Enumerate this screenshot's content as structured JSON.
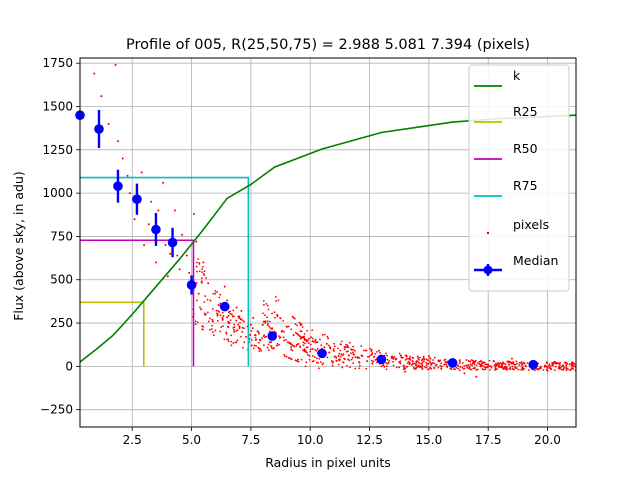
{
  "chart_data": {
    "type": "scatter",
    "title": "Profile of 005, R(25,50,75) = 2.988 5.081 7.394 (pixels)",
    "xlabel": "Radius in pixel units",
    "ylabel": "Flux (above sky, in adu)",
    "xlim": [
      0.3,
      21.2
    ],
    "ylim": [
      -350,
      1780
    ],
    "xticks": [
      2.5,
      5.0,
      7.5,
      10.0,
      12.5,
      15.0,
      17.5,
      20.0
    ],
    "xtick_labels": [
      "2.5",
      "5.0",
      "7.5",
      "10.0",
      "12.5",
      "15.0",
      "17.5",
      "20.0"
    ],
    "yticks": [
      -250,
      0,
      250,
      500,
      750,
      1000,
      1250,
      1500,
      1750
    ],
    "ytick_labels": [
      "−250",
      "0",
      "250",
      "500",
      "750",
      "1000",
      "1250",
      "1500",
      "1750"
    ],
    "grid": true,
    "legend_position": "top-right",
    "legend": [
      {
        "label": "k",
        "kind": "line",
        "color": "#008000"
      },
      {
        "label": "R25",
        "kind": "line",
        "color": "#bfbf00"
      },
      {
        "label": "R50",
        "kind": "line",
        "color": "#bf00bf"
      },
      {
        "label": "R75",
        "kind": "line",
        "color": "#00bfbf"
      },
      {
        "label": "pixels",
        "kind": "dot",
        "color": "#ff0000"
      },
      {
        "label": "Median",
        "kind": "errorbar",
        "color": "#0000ff"
      }
    ],
    "k_curve": {
      "x": [
        0.3,
        1.0,
        1.7,
        2.5,
        3.5,
        4.5,
        5.5,
        6.5,
        7.5,
        8.5,
        10.5,
        13.0,
        16.0,
        18.0,
        21.2
      ],
      "y": [
        25,
        100,
        180,
        300,
        460,
        620,
        790,
        970,
        1050,
        1150,
        1255,
        1350,
        1410,
        1430,
        1450
      ]
    },
    "radius_markers": [
      {
        "name": "R25",
        "radius": 2.988,
        "flux": 370
      },
      {
        "name": "R50",
        "radius": 5.081,
        "flux": 728
      },
      {
        "name": "R75",
        "radius": 7.394,
        "flux": 1090
      }
    ],
    "median": {
      "x": [
        0.3,
        1.1,
        1.9,
        2.7,
        3.5,
        4.2,
        5.0,
        6.4,
        8.4,
        10.5,
        13.0,
        16.0,
        19.4
      ],
      "y": [
        1450,
        1370,
        1040,
        965,
        790,
        715,
        470,
        345,
        175,
        75,
        40,
        20,
        10
      ],
      "err": [
        0,
        110,
        95,
        90,
        95,
        85,
        55,
        25,
        20,
        10,
        8,
        8,
        8
      ]
    },
    "pixels": {
      "color": "#ff0000",
      "x": [
        0.9,
        1.2,
        1.5,
        1.8,
        1.9,
        2.1,
        2.3,
        2.4,
        2.6,
        2.7,
        2.9,
        3.0,
        3.2,
        3.3,
        3.4,
        3.5,
        3.6,
        3.8,
        3.9,
        4.0,
        4.1,
        4.3,
        4.4,
        4.5,
        4.6,
        4.8,
        4.9,
        5.0,
        5.1,
        5.2,
        5.3,
        5.4,
        5.5,
        5.6,
        5.7,
        5.8,
        5.9,
        6.0,
        6.1,
        6.2,
        6.3,
        6.4,
        6.5,
        6.6,
        6.7,
        6.8,
        6.9,
        7.0,
        7.1,
        7.2,
        7.3,
        7.4,
        7.5,
        7.6,
        7.7,
        7.8,
        7.9,
        8.0,
        8.2,
        8.3,
        8.4,
        8.5,
        8.6,
        8.8,
        8.9,
        9.0,
        9.2,
        9.3,
        9.5,
        9.6,
        9.8,
        9.9,
        10.1,
        10.3,
        10.4,
        10.6,
        10.8,
        11.0,
        11.2,
        11.4,
        11.6,
        11.8,
        12.0,
        12.2,
        12.4,
        12.6,
        12.8,
        13.0,
        13.3,
        13.6,
        13.9,
        14.2,
        14.5,
        14.8,
        15.1,
        15.4,
        15.7,
        16.0,
        16.3,
        16.6,
        16.9,
        17.2,
        17.5,
        17.8,
        18.1,
        18.4,
        18.7,
        19.0,
        19.3,
        19.6,
        19.9,
        20.2,
        20.5,
        20.8,
        21.1,
        14.0,
        15.0,
        16.5,
        18.5,
        20.0,
        12.9,
        11.5,
        10.7,
        9.7,
        17.0
      ],
      "y": [
        1690,
        1560,
        1400,
        1740,
        1300,
        1200,
        1100,
        1000,
        850,
        900,
        1120,
        700,
        820,
        950,
        780,
        600,
        900,
        1060,
        700,
        520,
        650,
        900,
        640,
        560,
        760,
        640,
        540,
        430,
        880,
        720,
        420,
        330,
        600,
        300,
        480,
        380,
        260,
        420,
        300,
        350,
        280,
        460,
        380,
        250,
        300,
        200,
        340,
        280,
        320,
        260,
        170,
        320,
        240,
        280,
        180,
        200,
        150,
        240,
        260,
        140,
        220,
        180,
        120,
        200,
        150,
        230,
        110,
        180,
        130,
        160,
        90,
        150,
        100,
        140,
        60,
        110,
        80,
        90,
        60,
        70,
        40,
        80,
        50,
        60,
        30,
        70,
        40,
        50,
        20,
        40,
        50,
        20,
        30,
        40,
        10,
        30,
        25,
        15,
        35,
        5,
        20,
        30,
        10,
        -20,
        15,
        25,
        -10,
        20,
        10,
        -15,
        5,
        20,
        -5,
        10,
        0,
        -30,
        60,
        -40,
        45,
        -25,
        90,
        110,
        130,
        170,
        -60
      ]
    }
  }
}
